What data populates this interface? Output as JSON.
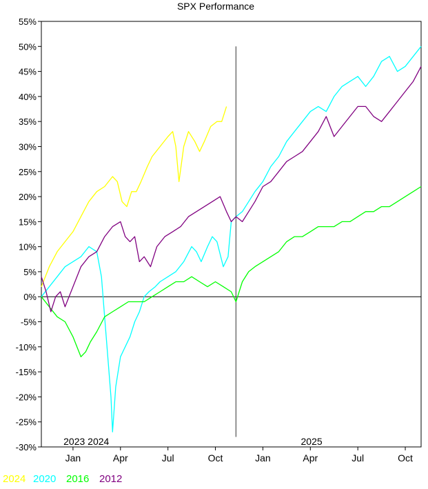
{
  "chart_data": {
    "type": "line",
    "title": "SPX Performance",
    "xlabel": "",
    "ylabel": "",
    "ylim": [
      -30,
      55
    ],
    "y_ticks": [
      55,
      50,
      45,
      40,
      35,
      30,
      25,
      20,
      15,
      10,
      5,
      0,
      -5,
      -10,
      -15,
      -20,
      -25,
      -30
    ],
    "y_tick_suffix": "%",
    "x_ticks": [
      {
        "month": 0.5,
        "label": "Jan"
      },
      {
        "month": 3.5,
        "label": "Apr"
      },
      {
        "month": 6.5,
        "label": "Jul"
      },
      {
        "month": 9.5,
        "label": "Oct"
      },
      {
        "month": 12.5,
        "label": "Jan"
      },
      {
        "month": 15.5,
        "label": "Apr"
      },
      {
        "month": 18.5,
        "label": "Jul"
      },
      {
        "month": 21.5,
        "label": "Oct"
      }
    ],
    "year_labels": [
      {
        "month": -0.1,
        "label": "2023 2024"
      },
      {
        "month": 14.9,
        "label": "2025"
      }
    ],
    "xlim": [
      -1.5,
      22.5
    ],
    "vline": {
      "x": 10.8,
      "y_top": 50,
      "y_bottom": -28
    },
    "grid": false,
    "legend": "bottom-left",
    "series": [
      {
        "name": "2024",
        "color": "#ffff00",
        "points": [
          [
            -1.5,
            2
          ],
          [
            -1.0,
            6
          ],
          [
            -0.5,
            9
          ],
          [
            0,
            11
          ],
          [
            0.5,
            13
          ],
          [
            1.0,
            16
          ],
          [
            1.5,
            19
          ],
          [
            2.0,
            21
          ],
          [
            2.5,
            22
          ],
          [
            3.0,
            24
          ],
          [
            3.3,
            23
          ],
          [
            3.6,
            19
          ],
          [
            3.9,
            18
          ],
          [
            4.2,
            21
          ],
          [
            4.5,
            21
          ],
          [
            4.8,
            23
          ],
          [
            5.2,
            26
          ],
          [
            5.5,
            28
          ],
          [
            6.0,
            30
          ],
          [
            6.5,
            32
          ],
          [
            6.8,
            33
          ],
          [
            7.0,
            30
          ],
          [
            7.2,
            23
          ],
          [
            7.5,
            30
          ],
          [
            7.8,
            33
          ],
          [
            8.2,
            31
          ],
          [
            8.5,
            29
          ],
          [
            8.8,
            31
          ],
          [
            9.2,
            34
          ],
          [
            9.6,
            35
          ],
          [
            9.9,
            35
          ],
          [
            10.2,
            38
          ]
        ]
      },
      {
        "name": "2020",
        "color": "#00ffff",
        "points": [
          [
            -1.5,
            0
          ],
          [
            -1.0,
            2
          ],
          [
            -0.5,
            4
          ],
          [
            0,
            6
          ],
          [
            0.5,
            7
          ],
          [
            1.0,
            8
          ],
          [
            1.5,
            10
          ],
          [
            2.0,
            9
          ],
          [
            2.3,
            4
          ],
          [
            2.5,
            -4
          ],
          [
            2.7,
            -12
          ],
          [
            2.9,
            -20
          ],
          [
            3.0,
            -27
          ],
          [
            3.2,
            -18
          ],
          [
            3.5,
            -12
          ],
          [
            3.8,
            -10
          ],
          [
            4.1,
            -8
          ],
          [
            4.4,
            -5
          ],
          [
            4.7,
            -3
          ],
          [
            5.0,
            0
          ],
          [
            5.3,
            1
          ],
          [
            5.7,
            2
          ],
          [
            6.0,
            3
          ],
          [
            6.5,
            4
          ],
          [
            7.0,
            5
          ],
          [
            7.5,
            7
          ],
          [
            8.0,
            10
          ],
          [
            8.3,
            9
          ],
          [
            8.6,
            7
          ],
          [
            9.0,
            10
          ],
          [
            9.3,
            12
          ],
          [
            9.6,
            11
          ],
          [
            10.0,
            6
          ],
          [
            10.3,
            8
          ],
          [
            10.5,
            15
          ],
          [
            10.8,
            16
          ],
          [
            11.2,
            17
          ],
          [
            11.6,
            19
          ],
          [
            12.0,
            21
          ],
          [
            12.5,
            23
          ],
          [
            13.0,
            26
          ],
          [
            13.5,
            28
          ],
          [
            14.0,
            31
          ],
          [
            14.5,
            33
          ],
          [
            15.0,
            35
          ],
          [
            15.5,
            37
          ],
          [
            16.0,
            38
          ],
          [
            16.5,
            37
          ],
          [
            17.0,
            40
          ],
          [
            17.5,
            42
          ],
          [
            18.0,
            43
          ],
          [
            18.5,
            44
          ],
          [
            19.0,
            42
          ],
          [
            19.5,
            44
          ],
          [
            20.0,
            47
          ],
          [
            20.5,
            48
          ],
          [
            21.0,
            45
          ],
          [
            21.5,
            46
          ],
          [
            22.0,
            48
          ],
          [
            22.5,
            50
          ]
        ]
      },
      {
        "name": "2016",
        "color": "#00ff00",
        "points": [
          [
            -1.5,
            0
          ],
          [
            -1.0,
            -2
          ],
          [
            -0.5,
            -4
          ],
          [
            0,
            -5
          ],
          [
            0.5,
            -8
          ],
          [
            1.0,
            -12
          ],
          [
            1.3,
            -11
          ],
          [
            1.6,
            -9
          ],
          [
            2.0,
            -7
          ],
          [
            2.5,
            -4
          ],
          [
            3.0,
            -3
          ],
          [
            3.5,
            -2
          ],
          [
            4.0,
            -1
          ],
          [
            4.5,
            -1
          ],
          [
            5.0,
            -1
          ],
          [
            5.5,
            0
          ],
          [
            6.0,
            1
          ],
          [
            6.5,
            2
          ],
          [
            7.0,
            3
          ],
          [
            7.5,
            3
          ],
          [
            8.0,
            4
          ],
          [
            8.5,
            3
          ],
          [
            9.0,
            2
          ],
          [
            9.5,
            3
          ],
          [
            10.0,
            2
          ],
          [
            10.5,
            1
          ],
          [
            10.8,
            -1
          ],
          [
            11.2,
            3
          ],
          [
            11.6,
            5
          ],
          [
            12.0,
            6
          ],
          [
            12.5,
            7
          ],
          [
            13.0,
            8
          ],
          [
            13.5,
            9
          ],
          [
            14.0,
            11
          ],
          [
            14.5,
            12
          ],
          [
            15.0,
            12
          ],
          [
            15.5,
            13
          ],
          [
            16.0,
            14
          ],
          [
            16.5,
            14
          ],
          [
            17.0,
            14
          ],
          [
            17.5,
            15
          ],
          [
            18.0,
            15
          ],
          [
            18.5,
            16
          ],
          [
            19.0,
            17
          ],
          [
            19.5,
            17
          ],
          [
            20.0,
            18
          ],
          [
            20.5,
            18
          ],
          [
            21.0,
            19
          ],
          [
            21.5,
            20
          ],
          [
            22.0,
            21
          ],
          [
            22.5,
            22
          ]
        ]
      },
      {
        "name": "2012",
        "color": "#800080",
        "points": [
          [
            -1.5,
            4
          ],
          [
            -1.2,
            1
          ],
          [
            -0.9,
            -3
          ],
          [
            -0.6,
            0
          ],
          [
            -0.3,
            1
          ],
          [
            0,
            -2
          ],
          [
            0.5,
            2
          ],
          [
            1.0,
            6
          ],
          [
            1.5,
            8
          ],
          [
            2.0,
            9
          ],
          [
            2.5,
            12
          ],
          [
            3.0,
            14
          ],
          [
            3.5,
            15
          ],
          [
            3.8,
            12
          ],
          [
            4.1,
            11
          ],
          [
            4.4,
            12
          ],
          [
            4.7,
            7
          ],
          [
            5.0,
            8
          ],
          [
            5.4,
            6
          ],
          [
            5.8,
            10
          ],
          [
            6.3,
            12
          ],
          [
            6.8,
            13
          ],
          [
            7.3,
            14
          ],
          [
            7.8,
            16
          ],
          [
            8.3,
            17
          ],
          [
            8.8,
            18
          ],
          [
            9.3,
            19
          ],
          [
            9.8,
            20
          ],
          [
            10.2,
            17
          ],
          [
            10.5,
            15
          ],
          [
            10.8,
            16
          ],
          [
            11.2,
            15
          ],
          [
            11.6,
            17
          ],
          [
            12.0,
            19
          ],
          [
            12.5,
            22
          ],
          [
            13.0,
            23
          ],
          [
            13.5,
            25
          ],
          [
            14.0,
            27
          ],
          [
            14.5,
            28
          ],
          [
            15.0,
            29
          ],
          [
            15.5,
            31
          ],
          [
            16.0,
            33
          ],
          [
            16.5,
            36
          ],
          [
            17.0,
            32
          ],
          [
            17.5,
            34
          ],
          [
            18.0,
            36
          ],
          [
            18.5,
            38
          ],
          [
            19.0,
            38
          ],
          [
            19.5,
            36
          ],
          [
            20.0,
            35
          ],
          [
            20.5,
            37
          ],
          [
            21.0,
            39
          ],
          [
            21.5,
            41
          ],
          [
            22.0,
            43
          ],
          [
            22.5,
            46
          ]
        ]
      }
    ]
  }
}
